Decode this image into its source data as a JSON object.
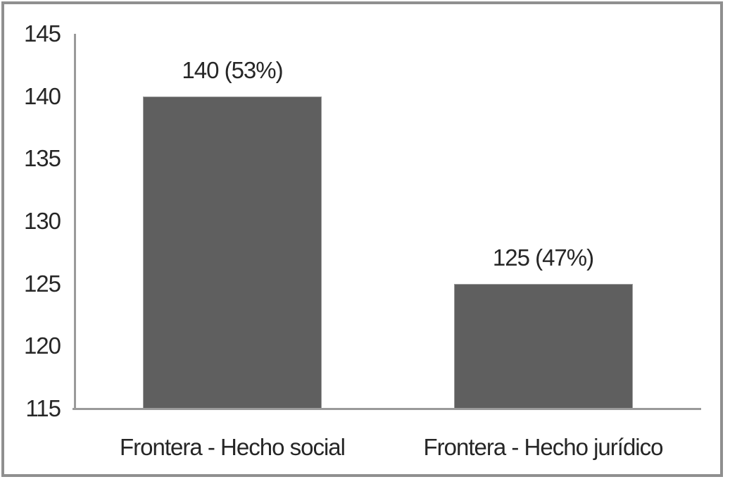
{
  "chart_data": {
    "type": "bar",
    "title": "",
    "xlabel": "",
    "ylabel": "",
    "categories": [
      "Frontera - Hecho social",
      "Frontera - Hecho jurídico"
    ],
    "values": [
      140,
      125
    ],
    "data_labels": [
      "140 (53%)",
      "125 (47%)"
    ],
    "yticks": [
      115,
      120,
      125,
      130,
      135,
      140,
      145
    ],
    "ylim": [
      115,
      145
    ],
    "grid": false,
    "legend": "none",
    "colors": {
      "bar": "#5f5f5f",
      "axis": "#9a9a9a",
      "text": "#262626",
      "frame_border": "#8f8f8f",
      "background": "#ffffff"
    }
  }
}
